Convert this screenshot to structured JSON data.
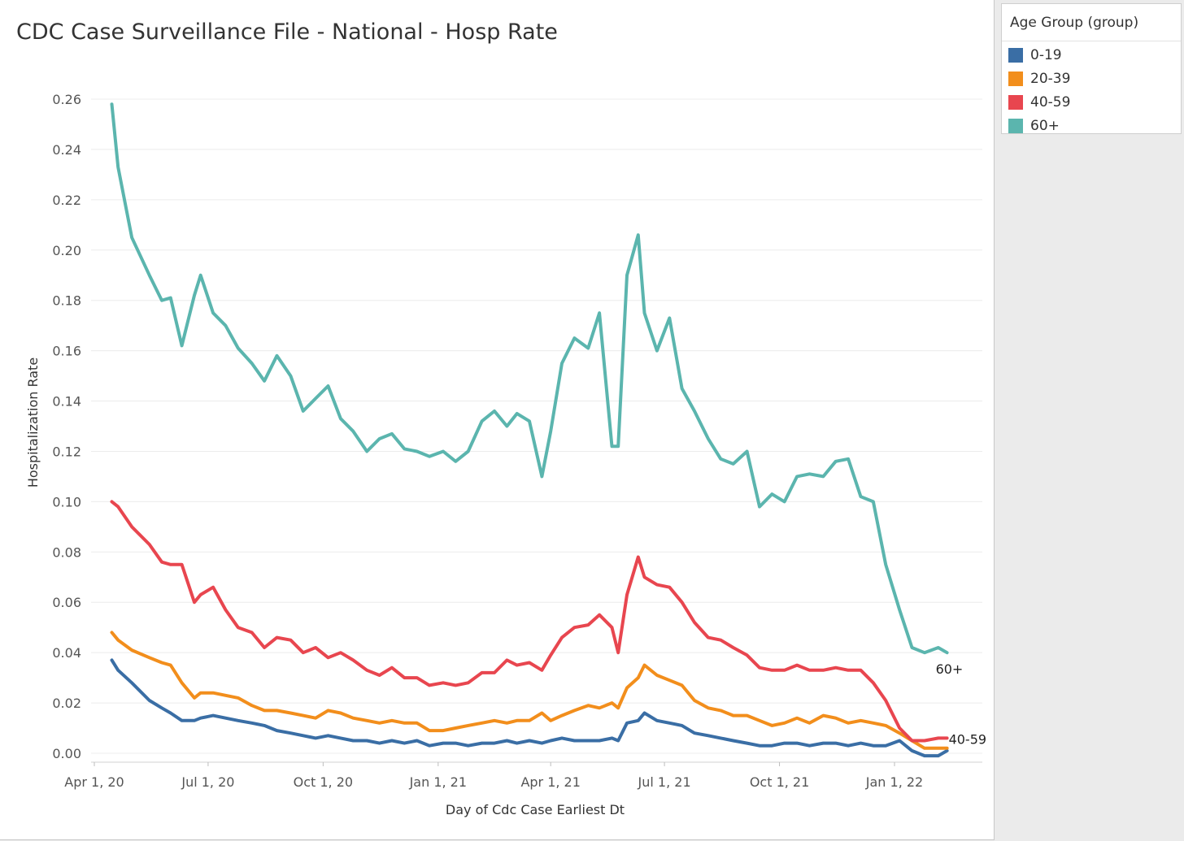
{
  "title": "CDC Case Surveillance File - National - Hosp Rate",
  "legend": {
    "title": "Age Group (group)",
    "items": [
      {
        "label": "0-19",
        "color": "#3a6ea5"
      },
      {
        "label": "20-39",
        "color": "#f28e1c"
      },
      {
        "label": "40-59",
        "color": "#e8464f"
      },
      {
        "label": "60+",
        "color": "#5bb5ae"
      }
    ]
  },
  "chart_data": {
    "type": "line",
    "title": "CDC Case Surveillance File - National - Hosp Rate",
    "xlabel": "Day of Cdc Case Earliest Dt",
    "ylabel": "Hospitalization Rate",
    "ylim": [
      0,
      0.26
    ],
    "grid": true,
    "x_ticks": [
      "Apr 1, 20",
      "Jul 1, 20",
      "Oct 1, 20",
      "Jan 1, 21",
      "Apr 1, 21",
      "Jul 1, 21",
      "Oct 1, 21",
      "Jan 1, 22"
    ],
    "y_ticks": [
      "0.00",
      "0.02",
      "0.04",
      "0.06",
      "0.08",
      "0.10",
      "0.12",
      "0.14",
      "0.16",
      "0.18",
      "0.20",
      "0.22",
      "0.24",
      "0.26"
    ],
    "y_tick_values": [
      0,
      0.02,
      0.04,
      0.06,
      0.08,
      0.1,
      0.12,
      0.14,
      0.16,
      0.18,
      0.2,
      0.22,
      0.24,
      0.26
    ],
    "x": [
      "2020-04-15",
      "2020-04-20",
      "2020-05-01",
      "2020-05-15",
      "2020-05-25",
      "2020-06-01",
      "2020-06-10",
      "2020-06-20",
      "2020-06-25",
      "2020-07-05",
      "2020-07-15",
      "2020-07-25",
      "2020-08-05",
      "2020-08-15",
      "2020-08-25",
      "2020-09-05",
      "2020-09-15",
      "2020-09-25",
      "2020-10-05",
      "2020-10-15",
      "2020-10-25",
      "2020-11-05",
      "2020-11-15",
      "2020-11-25",
      "2020-12-05",
      "2020-12-15",
      "2020-12-25",
      "2021-01-05",
      "2021-01-15",
      "2021-01-25",
      "2021-02-05",
      "2021-02-15",
      "2021-02-25",
      "2021-03-05",
      "2021-03-15",
      "2021-03-25",
      "2021-04-01",
      "2021-04-10",
      "2021-04-20",
      "2021-05-01",
      "2021-05-10",
      "2021-05-20",
      "2021-05-25",
      "2021-06-01",
      "2021-06-10",
      "2021-06-15",
      "2021-06-25",
      "2021-07-05",
      "2021-07-15",
      "2021-07-25",
      "2021-08-05",
      "2021-08-15",
      "2021-08-25",
      "2021-09-05",
      "2021-09-15",
      "2021-09-25",
      "2021-10-05",
      "2021-10-15",
      "2021-10-25",
      "2021-11-05",
      "2021-11-15",
      "2021-11-25",
      "2021-12-05",
      "2021-12-15",
      "2021-12-25",
      "2022-01-05",
      "2022-01-15",
      "2022-01-25",
      "2022-02-05",
      "2022-02-12"
    ],
    "series": [
      {
        "name": "0-19",
        "values": [
          0.037,
          0.033,
          0.028,
          0.021,
          0.018,
          0.016,
          0.013,
          0.013,
          0.014,
          0.015,
          0.014,
          0.013,
          0.012,
          0.011,
          0.009,
          0.008,
          0.007,
          0.006,
          0.007,
          0.006,
          0.005,
          0.005,
          0.004,
          0.005,
          0.004,
          0.005,
          0.003,
          0.004,
          0.004,
          0.003,
          0.004,
          0.004,
          0.005,
          0.004,
          0.005,
          0.004,
          0.005,
          0.006,
          0.005,
          0.005,
          0.005,
          0.006,
          0.005,
          0.012,
          0.013,
          0.016,
          0.013,
          0.012,
          0.011,
          0.008,
          0.007,
          0.006,
          0.005,
          0.004,
          0.003,
          0.003,
          0.004,
          0.004,
          0.003,
          0.004,
          0.004,
          0.003,
          0.004,
          0.003,
          0.003,
          0.005,
          0.001,
          -0.001,
          -0.001,
          0.001
        ]
      },
      {
        "name": "20-39",
        "values": [
          0.048,
          0.045,
          0.041,
          0.038,
          0.036,
          0.035,
          0.028,
          0.022,
          0.024,
          0.024,
          0.023,
          0.022,
          0.019,
          0.017,
          0.017,
          0.016,
          0.015,
          0.014,
          0.017,
          0.016,
          0.014,
          0.013,
          0.012,
          0.013,
          0.012,
          0.012,
          0.009,
          0.009,
          0.01,
          0.011,
          0.012,
          0.013,
          0.012,
          0.013,
          0.013,
          0.016,
          0.013,
          0.015,
          0.017,
          0.019,
          0.018,
          0.02,
          0.018,
          0.026,
          0.03,
          0.035,
          0.031,
          0.029,
          0.027,
          0.021,
          0.018,
          0.017,
          0.015,
          0.015,
          0.013,
          0.011,
          0.012,
          0.014,
          0.012,
          0.015,
          0.014,
          0.012,
          0.013,
          0.012,
          0.011,
          0.008,
          0.005,
          0.002,
          0.002,
          0.002
        ]
      },
      {
        "name": "40-59",
        "values": [
          0.1,
          0.098,
          0.09,
          0.083,
          0.076,
          0.075,
          0.075,
          0.06,
          0.063,
          0.066,
          0.057,
          0.05,
          0.048,
          0.042,
          0.046,
          0.045,
          0.04,
          0.042,
          0.038,
          0.04,
          0.037,
          0.033,
          0.031,
          0.034,
          0.03,
          0.03,
          0.027,
          0.028,
          0.027,
          0.028,
          0.032,
          0.032,
          0.037,
          0.035,
          0.036,
          0.033,
          0.039,
          0.046,
          0.05,
          0.051,
          0.055,
          0.05,
          0.04,
          0.063,
          0.078,
          0.07,
          0.067,
          0.066,
          0.06,
          0.052,
          0.046,
          0.045,
          0.042,
          0.039,
          0.034,
          0.033,
          0.033,
          0.035,
          0.033,
          0.033,
          0.034,
          0.033,
          0.033,
          0.028,
          0.021,
          0.01,
          0.005,
          0.005,
          0.006,
          0.006
        ]
      },
      {
        "name": "60+",
        "values": [
          0.258,
          0.233,
          0.205,
          0.19,
          0.18,
          0.181,
          0.162,
          0.182,
          0.19,
          0.175,
          0.17,
          0.161,
          0.155,
          0.148,
          0.158,
          0.15,
          0.136,
          0.141,
          0.146,
          0.133,
          0.128,
          0.12,
          0.125,
          0.127,
          0.121,
          0.12,
          0.118,
          0.12,
          0.116,
          0.12,
          0.132,
          0.136,
          0.13,
          0.135,
          0.132,
          0.11,
          0.128,
          0.155,
          0.165,
          0.161,
          0.175,
          0.122,
          0.122,
          0.19,
          0.206,
          0.175,
          0.16,
          0.173,
          0.145,
          0.136,
          0.125,
          0.117,
          0.115,
          0.12,
          0.098,
          0.103,
          0.1,
          0.11,
          0.111,
          0.11,
          0.116,
          0.117,
          0.102,
          0.1,
          0.075,
          0.057,
          0.042,
          0.04,
          0.042,
          0.04
        ]
      }
    ],
    "end_labels": [
      "60+",
      "40-59"
    ]
  }
}
